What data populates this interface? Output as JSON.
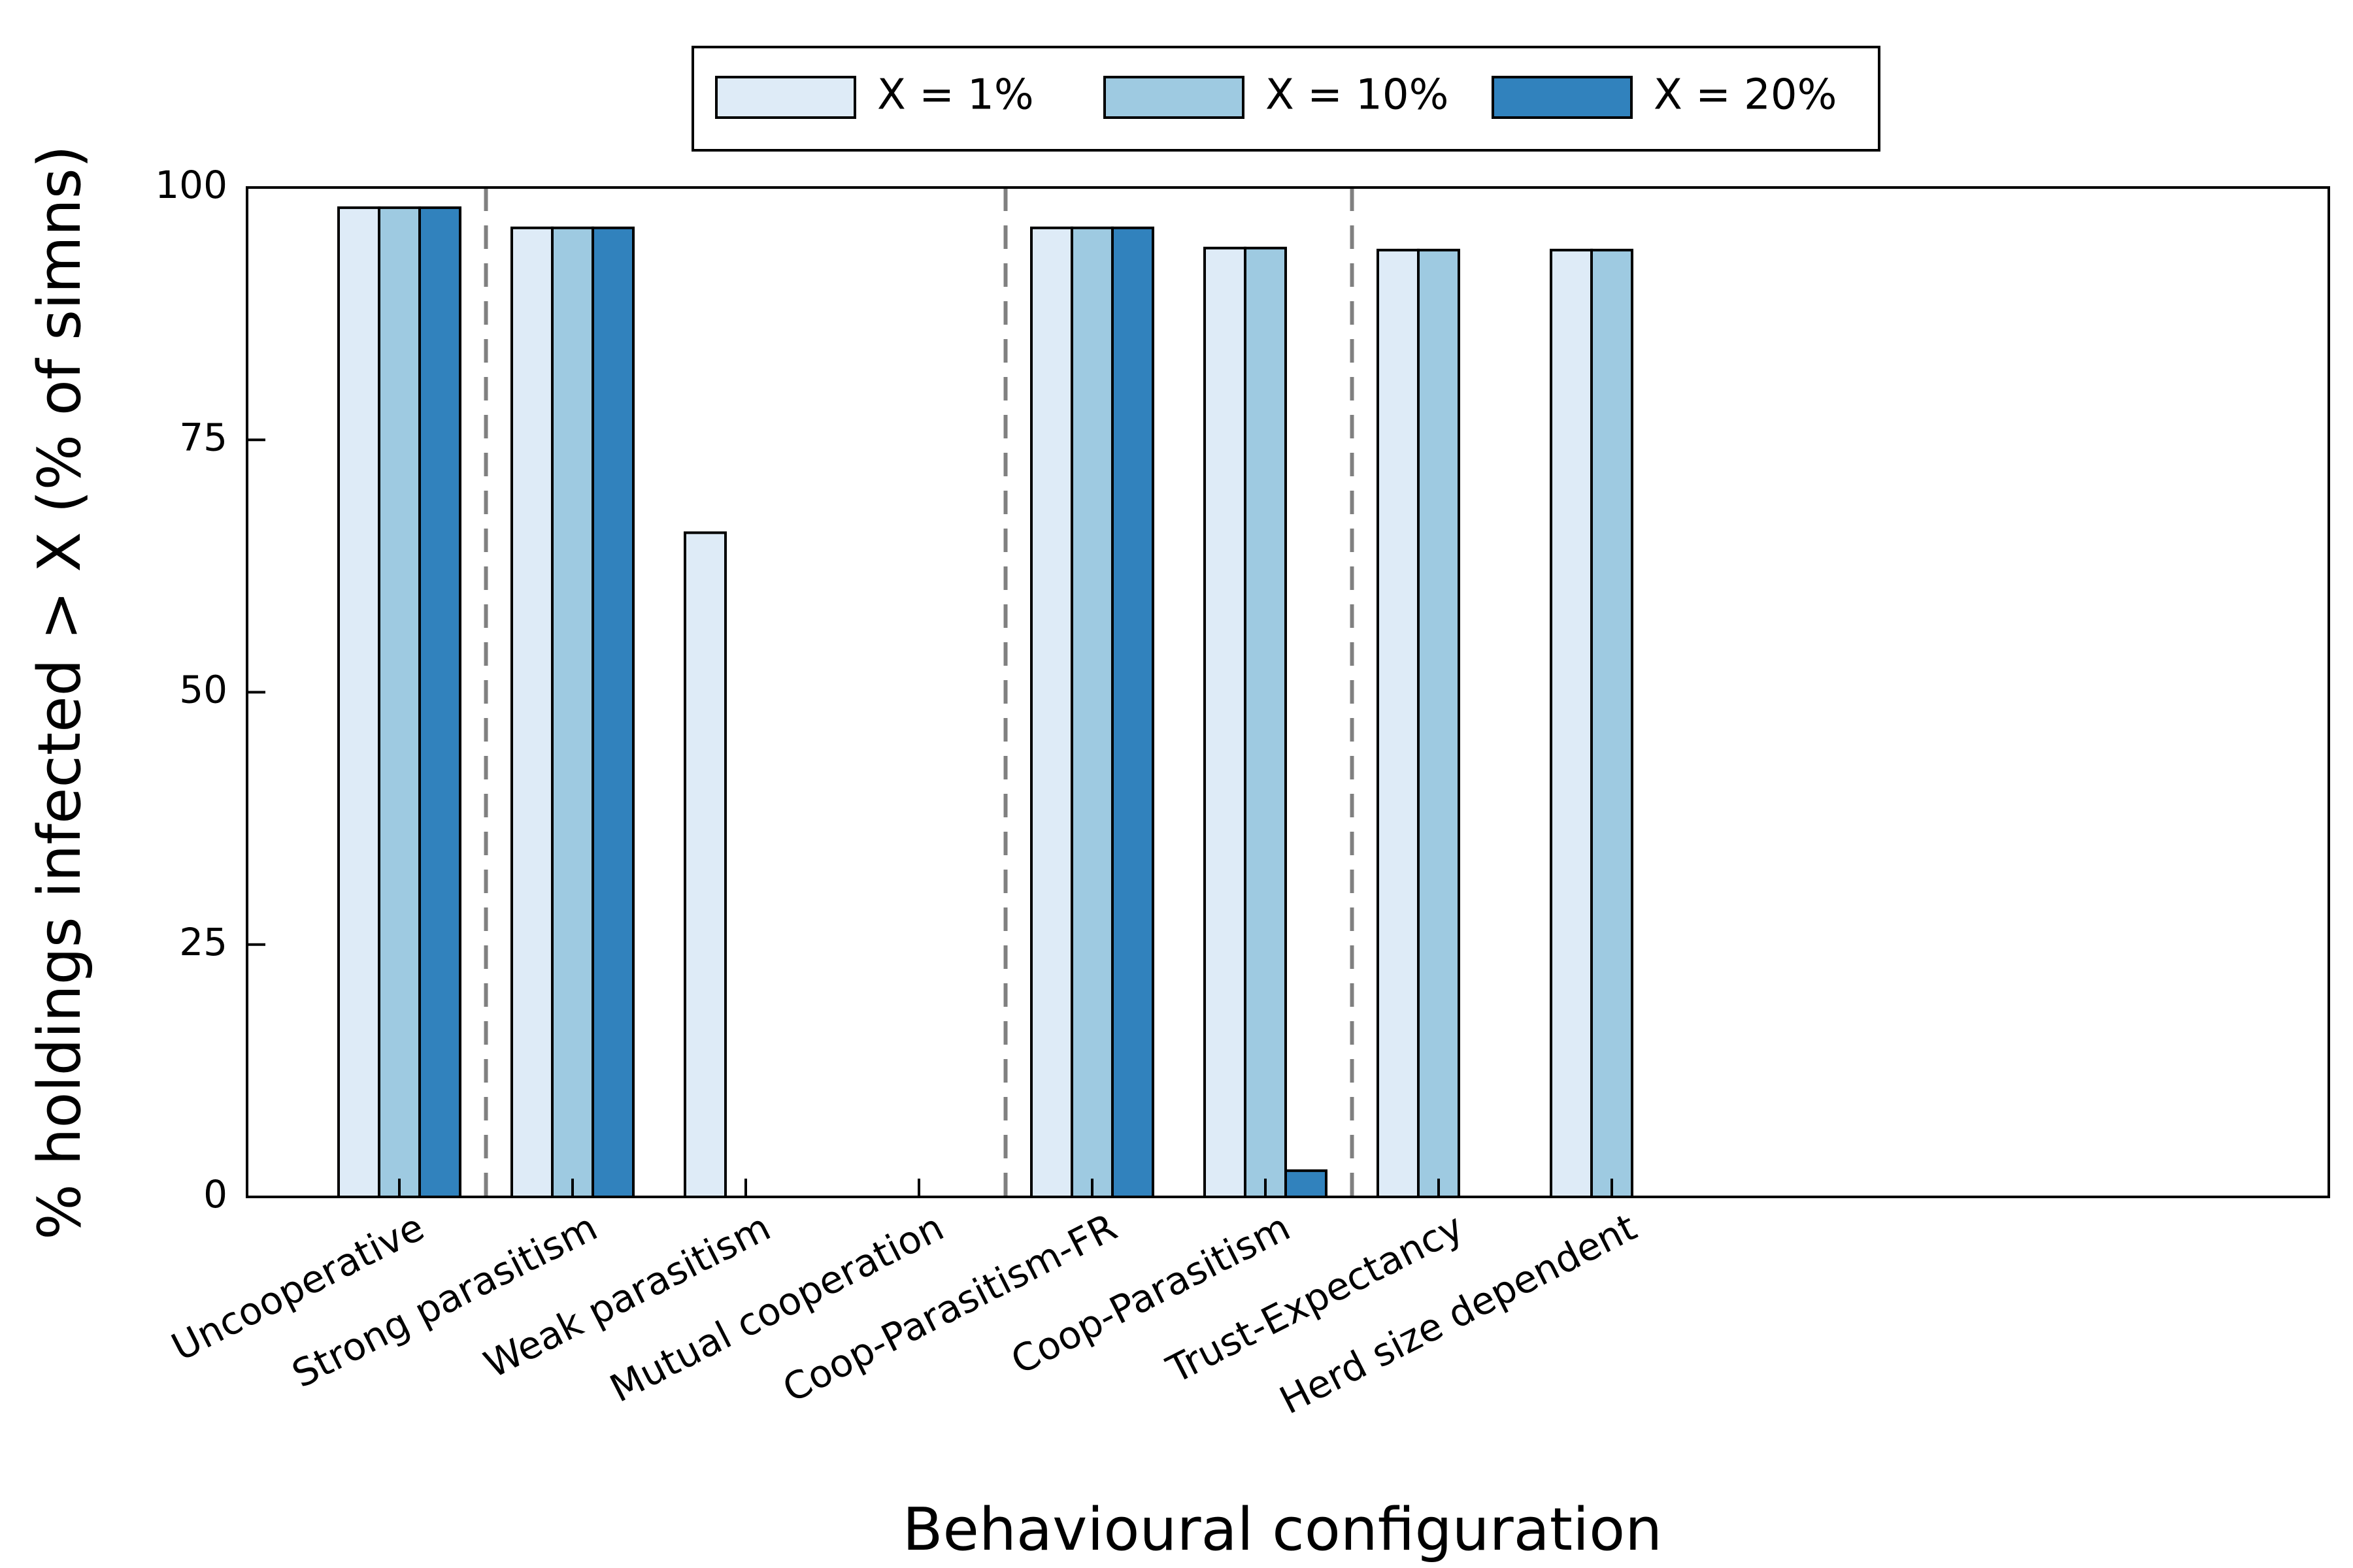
{
  "chart_data": {
    "type": "bar",
    "title": "",
    "xlabel": "Behavioural configuration",
    "ylabel": "% holdings infected > X (% of simns)",
    "ylim": [
      0,
      100
    ],
    "yticks": [
      0,
      25,
      50,
      75,
      100
    ],
    "categories": [
      "Uncooperative",
      "Strong parasitism",
      "Weak parasitism",
      "Mutual cooperation",
      "Coop-Parasitism-FR",
      "Coop-Parasitism",
      "Trust-Expectancy",
      "Herd size dependent"
    ],
    "group_separators_after": [
      0,
      3,
      5
    ],
    "series": [
      {
        "name": "X = 1%",
        "color": "#deebf7",
        "values": [
          98,
          96,
          65.8,
          0,
          96,
          94,
          93.8,
          93.8
        ]
      },
      {
        "name": "X = 10%",
        "color": "#9ecae1",
        "values": [
          98,
          96,
          0,
          0,
          96,
          94,
          93.8,
          93.8
        ]
      },
      {
        "name": "X = 20%",
        "color": "#3182bd",
        "values": [
          98,
          96,
          0,
          0,
          96,
          2.6,
          0,
          0
        ]
      }
    ],
    "legend_position": "top-center",
    "grid": false
  }
}
